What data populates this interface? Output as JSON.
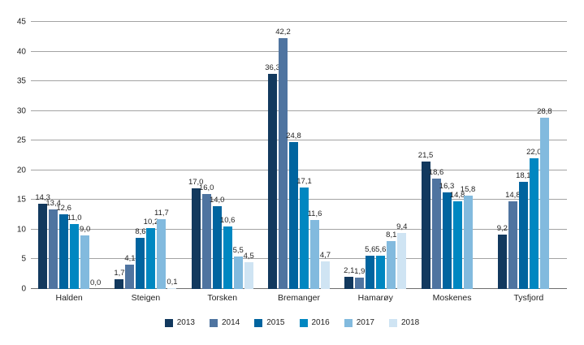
{
  "chart_data": {
    "type": "bar",
    "title": "",
    "xlabel": "",
    "ylabel": "",
    "categories": [
      "Halden",
      "Steigen",
      "Torsken",
      "Bremanger",
      "Hamarøy",
      "Moskenes",
      "Tysfjord"
    ],
    "series": [
      {
        "name": "2013",
        "color": "#12395e",
        "values": [
          14.3,
          1.7,
          17.0,
          36.3,
          2.1,
          21.5,
          9.2
        ]
      },
      {
        "name": "2014",
        "color": "#4f74a0",
        "values": [
          13.4,
          4.1,
          16.0,
          42.2,
          1.9,
          18.6,
          14.8
        ]
      },
      {
        "name": "2015",
        "color": "#00649f",
        "values": [
          12.6,
          8.6,
          14.0,
          24.8,
          5.6,
          16.3,
          18.1
        ]
      },
      {
        "name": "2016",
        "color": "#0087c1",
        "values": [
          11.0,
          10.2,
          10.6,
          17.1,
          5.6,
          14.8,
          22.0
        ]
      },
      {
        "name": "2017",
        "color": "#82bade",
        "values": [
          9.0,
          11.7,
          5.5,
          11.6,
          8.1,
          15.8,
          28.8
        ]
      },
      {
        "name": "2018",
        "color": "#cfe4f3",
        "values": [
          0.0,
          0.1,
          4.5,
          4.7,
          9.4,
          null,
          null
        ]
      }
    ],
    "value_labels": [
      "14,3",
      "13,4",
      "12,6",
      "11,0",
      "9,0",
      "0,0",
      "1,7",
      "4,1",
      "8,6",
      "10,2",
      "11,7",
      "0,1",
      "17,0",
      "16,0",
      "14,0",
      "10,6",
      "5,5",
      "4,5",
      "36,3",
      "42,2",
      "24,8",
      "17,1",
      "11,6",
      "4,7",
      "2,1",
      "1,9",
      "5,6",
      "5,6",
      "8,1",
      "9,4",
      "21,5",
      "18,6",
      "16,3",
      "14,8",
      "15,8",
      "9,2",
      "14,8",
      "18,1",
      "22,0",
      "28,8"
    ],
    "decimal_separator": ",",
    "ylim": [
      0,
      45
    ],
    "ytick_step": 5,
    "ytick_labels": [
      "0",
      "5",
      "10",
      "15",
      "20",
      "25",
      "30",
      "35",
      "40",
      "45"
    ],
    "grid": true,
    "legend_position": "bottom",
    "colors": {
      "gridline": "#a3a3a3",
      "axisline": "#6e6e6e",
      "text": "#1f1f1f",
      "background": "#ffffff"
    }
  }
}
